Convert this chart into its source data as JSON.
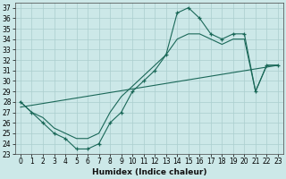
{
  "xlabel": "Humidex (Indice chaleur)",
  "background_color": "#cce8e8",
  "grid_color": "#aacece",
  "line_color": "#1a6858",
  "xlim": [
    -0.5,
    23.5
  ],
  "ylim": [
    23,
    37.5
  ],
  "yticks": [
    23,
    24,
    25,
    26,
    27,
    28,
    29,
    30,
    31,
    32,
    33,
    34,
    35,
    36,
    37
  ],
  "xticks": [
    0,
    1,
    2,
    3,
    4,
    5,
    6,
    7,
    8,
    9,
    10,
    11,
    12,
    13,
    14,
    15,
    16,
    17,
    18,
    19,
    20,
    21,
    22,
    23
  ],
  "curve1_x": [
    0,
    1,
    2,
    3,
    4,
    5,
    6,
    7,
    8,
    9,
    10,
    11,
    12,
    13,
    14,
    15,
    16,
    17,
    18,
    19,
    20,
    21,
    22,
    23
  ],
  "curve1_y": [
    28,
    27,
    26,
    25,
    24.5,
    23.5,
    23.5,
    24,
    26,
    27,
    29,
    30,
    31,
    32.5,
    36.5,
    37,
    36,
    34.5,
    34,
    34.5,
    34.5,
    29,
    31.5,
    31.5
  ],
  "curve2_x": [
    0,
    1,
    2,
    3,
    4,
    5,
    6,
    7,
    8,
    9,
    10,
    11,
    12,
    13,
    14,
    15,
    16,
    17,
    18,
    19,
    20,
    21,
    22,
    23
  ],
  "curve2_y": [
    28,
    27,
    26.5,
    25.5,
    25,
    24.5,
    24.5,
    25,
    27,
    28.5,
    29.5,
    30.5,
    31.5,
    32.5,
    34,
    34.5,
    34.5,
    34,
    33.5,
    34,
    34,
    29,
    31.5,
    31.5
  ],
  "line3_x": [
    0,
    23
  ],
  "line3_y": [
    27.5,
    31.5
  ],
  "xlabel_fontsize": 6.5,
  "tick_fontsize": 5.5
}
